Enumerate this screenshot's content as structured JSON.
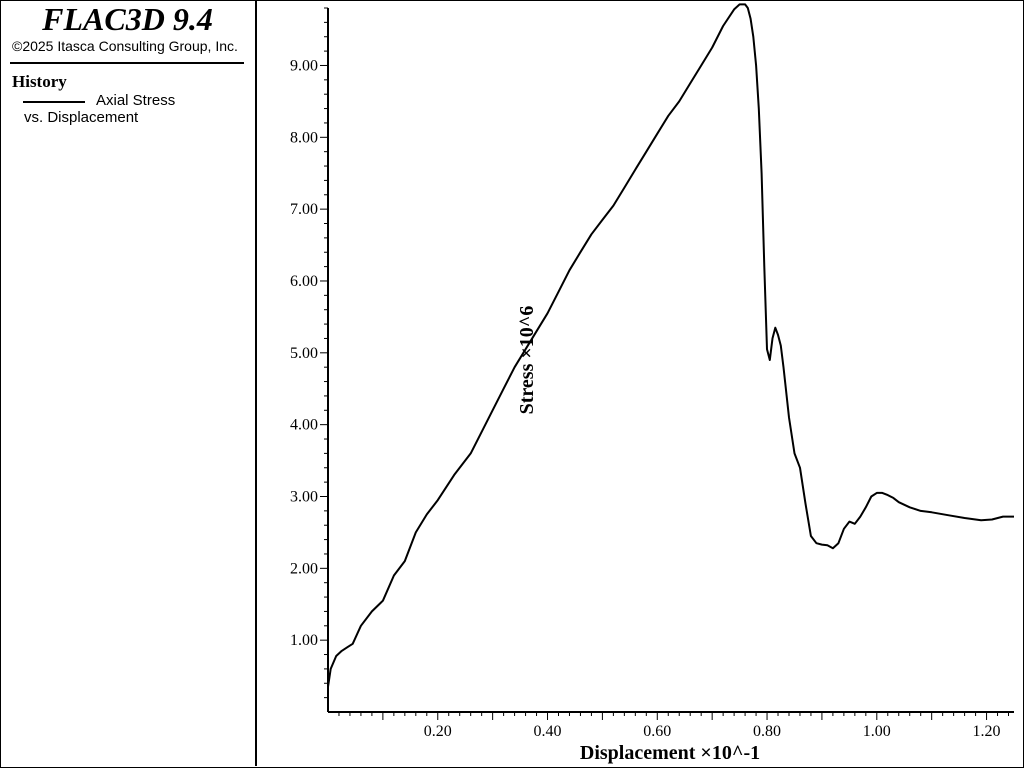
{
  "header": {
    "app_title": "FLAC3D 9.4",
    "copyright": "©2025 Itasca Consulting Group, Inc."
  },
  "legend": {
    "heading": "History",
    "entries": [
      {
        "line1": "Axial Stress",
        "line2": "vs. Displacement",
        "color": "#000000"
      }
    ]
  },
  "chart_data": {
    "type": "line",
    "title": "",
    "xlabel": "Displacement ×10^-1",
    "ylabel": "Stress ×10^6",
    "xlim": [
      0.0,
      1.25
    ],
    "ylim": [
      0.0,
      9.8
    ],
    "xticks": [
      "0.20",
      "0.40",
      "0.60",
      "0.80",
      "1.00",
      "1.20"
    ],
    "yticks": [
      "1.00",
      "2.00",
      "3.00",
      "4.00",
      "5.00",
      "6.00",
      "7.00",
      "8.00",
      "9.00"
    ],
    "grid": false,
    "legend_position": "left-panel",
    "series": [
      {
        "name": "Axial Stress vs. Displacement",
        "color": "#000000",
        "x": [
          0.0,
          0.005,
          0.015,
          0.025,
          0.035,
          0.045,
          0.06,
          0.08,
          0.1,
          0.12,
          0.14,
          0.16,
          0.18,
          0.2,
          0.23,
          0.26,
          0.28,
          0.3,
          0.32,
          0.34,
          0.36,
          0.38,
          0.4,
          0.42,
          0.44,
          0.46,
          0.48,
          0.5,
          0.52,
          0.54,
          0.56,
          0.58,
          0.6,
          0.62,
          0.64,
          0.66,
          0.68,
          0.7,
          0.72,
          0.74,
          0.75,
          0.76,
          0.765,
          0.77,
          0.775,
          0.78,
          0.785,
          0.79,
          0.795,
          0.8,
          0.805,
          0.81,
          0.815,
          0.82,
          0.825,
          0.83,
          0.84,
          0.85,
          0.86,
          0.87,
          0.88,
          0.89,
          0.9,
          0.91,
          0.92,
          0.93,
          0.94,
          0.95,
          0.96,
          0.97,
          0.98,
          0.99,
          1.0,
          1.01,
          1.02,
          1.03,
          1.04,
          1.06,
          1.08,
          1.1,
          1.13,
          1.16,
          1.19,
          1.21,
          1.23,
          1.25
        ],
        "y": [
          0.35,
          0.6,
          0.78,
          0.85,
          0.9,
          0.95,
          1.2,
          1.4,
          1.55,
          1.9,
          2.1,
          2.5,
          2.75,
          2.95,
          3.3,
          3.6,
          3.9,
          4.2,
          4.5,
          4.8,
          5.05,
          5.3,
          5.55,
          5.85,
          6.15,
          6.4,
          6.65,
          6.85,
          7.05,
          7.3,
          7.55,
          7.8,
          8.05,
          8.3,
          8.5,
          8.75,
          9.0,
          9.25,
          9.55,
          9.78,
          9.85,
          9.85,
          9.8,
          9.65,
          9.4,
          9.0,
          8.4,
          7.5,
          6.2,
          5.05,
          4.9,
          5.2,
          5.35,
          5.25,
          5.1,
          4.8,
          4.1,
          3.6,
          3.4,
          2.9,
          2.45,
          2.35,
          2.33,
          2.32,
          2.28,
          2.35,
          2.55,
          2.65,
          2.62,
          2.72,
          2.85,
          3.0,
          3.05,
          3.05,
          3.02,
          2.98,
          2.92,
          2.85,
          2.8,
          2.78,
          2.74,
          2.7,
          2.67,
          2.68,
          2.72,
          2.72
        ]
      }
    ]
  }
}
